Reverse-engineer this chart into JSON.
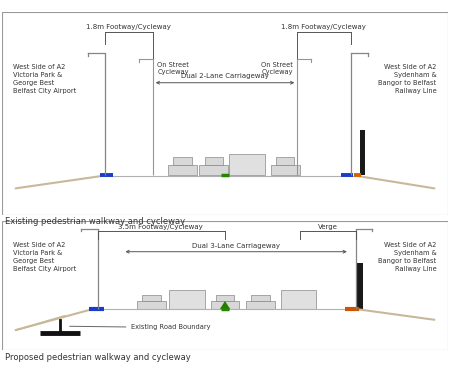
{
  "bg_color": "#ffffff",
  "border_color": "#aaaaaa",
  "line_color": "#888888",
  "top_caption": "Existing pedestrian walkway and cycleway",
  "bottom_caption": "Proposed pedestrian walkway and cycleway",
  "top_left_label": "West Side of A2\nVictoria Park &\nGeorge Best\nBelfast City Airport",
  "top_right_label": "West Side of A2\nSydenham &\nBangor to Belfast\nRailway Line",
  "bottom_left_label": "West Side of A2\nVictoria Park &\nGeorge Best\nBelfast City Airport",
  "bottom_right_label": "West Side of A2\nSydenham &\nBangor to Belfast\nRailway Line",
  "top_span_label": "Dual 2-Lane Carriageway",
  "bottom_span_label": "Dual 3-Lane Carriageway",
  "top_fw_left": "1.8m Footway/Cycleway",
  "top_fw_right": "1.8m Footway/Cycleway",
  "top_cyc_left": "On Street\nCycleway",
  "top_cyc_right": "On Street\nCycleway",
  "bottom_fw": "3.5m Footway/Cycleway",
  "bottom_verge": "Verge",
  "bottom_road_boundary": "Existing Road Boundary"
}
